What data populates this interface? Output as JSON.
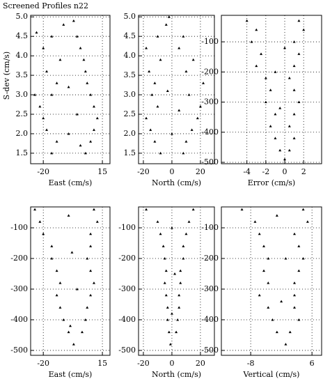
{
  "chart_data": [
    {
      "type": "scatter",
      "title": "Screened Profiles n22",
      "xlabel": "East (cm/s)",
      "ylabel": "S-dev (cm/s)",
      "color": "#000000",
      "grid": true,
      "xlim": [
        -27.5,
        19.5
      ],
      "ylim": [
        1.23,
        5.04
      ],
      "xticks": [
        -20,
        15
      ],
      "yticks": [
        1.5,
        {
          "value": 2,
          "label": "2.0"
        },
        2.5,
        {
          "value": 3,
          "label": "3.0"
        },
        3.5,
        {
          "value": 4,
          "label": "4.0"
        },
        4.5,
        {
          "value": 5,
          "label": "5.0"
        }
      ],
      "x": [
        -15,
        5,
        -12,
        8,
        -18,
        10,
        -20,
        12,
        -22,
        10,
        -15,
        8,
        -25,
        -12,
        6,
        -18,
        5,
        -10,
        4,
        -20,
        2,
        -15,
        0,
        -24,
        -8,
        -2,
        -5,
        0,
        -5,
        2
      ],
      "y": [
        1.5,
        1.5,
        1.8,
        1.8,
        2.1,
        2.1,
        2.4,
        2.4,
        2.7,
        2.7,
        3.0,
        3.0,
        3.0,
        3.3,
        3.3,
        3.6,
        3.6,
        3.9,
        3.9,
        4.2,
        4.2,
        4.5,
        4.5,
        4.6,
        4.8,
        4.9,
        2.0,
        2.5,
        3.2,
        1.7
      ]
    },
    {
      "type": "scatter",
      "xlabel": "North (cm/s)",
      "color": "#000000",
      "grid": true,
      "xlim": [
        -23.4,
        29.8
      ],
      "ylim": [
        1.23,
        5.04
      ],
      "xticks": [
        -20,
        0,
        20
      ],
      "yticks": [
        1.5,
        {
          "value": 2,
          "label": "2.0"
        },
        2.5,
        {
          "value": 3,
          "label": "3.0"
        },
        3.5,
        {
          "value": 4,
          "label": "4.0"
        },
        4.5,
        {
          "value": 5,
          "label": "5.0"
        }
      ],
      "x": [
        -8,
        8,
        -12,
        10,
        -15,
        14,
        -18,
        18,
        -10,
        20,
        -14,
        12,
        -12,
        22,
        -16,
        10,
        -8,
        15,
        -18,
        5,
        -10,
        8,
        -4,
        -2,
        0,
        5,
        -3
      ],
      "y": [
        1.5,
        1.5,
        1.8,
        1.8,
        2.1,
        2.1,
        2.4,
        2.4,
        2.7,
        2.7,
        3.0,
        3.0,
        3.3,
        3.3,
        3.6,
        3.6,
        3.9,
        3.9,
        4.2,
        4.2,
        4.5,
        4.5,
        4.8,
        5.0,
        2.0,
        2.6,
        3.1
      ]
    },
    {
      "type": "scatter",
      "xlabel": "Error (cm/s)",
      "color": "#000000",
      "grid": true,
      "xlim": [
        -6.7,
        3.9
      ],
      "ylim": [
        -504.6,
        -12
      ],
      "xticks": [
        -4,
        -2,
        0,
        2
      ],
      "yticks": [
        -100,
        -200,
        -300,
        -400,
        -500
      ],
      "x": [
        -4,
        1.5,
        -3,
        2,
        -3.5,
        1,
        -2.5,
        1.5,
        -3,
        1,
        -2,
        0.5,
        -1.5,
        1,
        -2,
        1.5,
        -1,
        1,
        -1.5,
        0.5,
        -1,
        1,
        -0.5,
        0.5,
        0,
        -1,
        0,
        -0.5
      ],
      "y": [
        -30,
        -30,
        -60,
        -60,
        -100,
        -100,
        -140,
        -140,
        -180,
        -180,
        -220,
        -220,
        -260,
        -260,
        -300,
        -300,
        -340,
        -340,
        -380,
        -380,
        -420,
        -420,
        -460,
        -460,
        -490,
        -200,
        -120,
        -320
      ]
    },
    {
      "type": "scatter",
      "xlabel": "East (cm/s)",
      "color": "#000000",
      "grid": true,
      "xlim": [
        -27.5,
        19.5
      ],
      "ylim": [
        -516,
        -31.8
      ],
      "xticks": [
        -20,
        15
      ],
      "yticks": [
        -100,
        -200,
        -300,
        -400,
        -500
      ],
      "x": [
        -25,
        10,
        -22,
        12,
        -20,
        8,
        -15,
        8,
        -15,
        6,
        -12,
        8,
        -10,
        10,
        -12,
        8,
        -10,
        6,
        -8,
        5,
        -5,
        3,
        -2,
        -5,
        -3,
        0,
        -4
      ],
      "y": [
        -40,
        -40,
        -80,
        -80,
        -120,
        -120,
        -160,
        -160,
        -200,
        -200,
        -240,
        -240,
        -280,
        -280,
        -320,
        -320,
        -360,
        -360,
        -400,
        -400,
        -440,
        -440,
        -480,
        -60,
        -180,
        -300,
        -420
      ]
    },
    {
      "type": "scatter",
      "xlabel": "North (cm/s)",
      "color": "#000000",
      "grid": true,
      "xlim": [
        -23.4,
        29.8
      ],
      "ylim": [
        -516,
        -31.8
      ],
      "xticks": [
        -20,
        0,
        20
      ],
      "yticks": [
        -100,
        -200,
        -300,
        -400,
        -500
      ],
      "x": [
        -18,
        15,
        -10,
        12,
        -8,
        10,
        -6,
        8,
        -5,
        8,
        -4,
        6,
        -5,
        6,
        -4,
        5,
        -3,
        5,
        -3,
        4,
        -2,
        3,
        -1,
        0,
        2,
        0
      ],
      "y": [
        -40,
        -40,
        -80,
        -80,
        -120,
        -120,
        -160,
        -160,
        -200,
        -200,
        -240,
        -240,
        -280,
        -280,
        -320,
        -320,
        -360,
        -360,
        -400,
        -400,
        -440,
        -440,
        -480,
        -100,
        -250,
        -380
      ]
    },
    {
      "type": "scatter",
      "xlabel": "Vertical (cm/s)",
      "color": "#000000",
      "grid": true,
      "xlim": [
        -14.7,
        8.2
      ],
      "ylim": [
        -516,
        -31.8
      ],
      "xticks": [
        -8,
        6
      ],
      "yticks": [
        -100,
        -200,
        -300,
        -400,
        -500
      ],
      "x": [
        -10,
        4,
        -7,
        5,
        -6,
        2,
        -5,
        3,
        -4,
        4,
        -5,
        3,
        -4,
        2,
        -6,
        2,
        -4,
        2,
        -3,
        3,
        -2,
        1,
        0,
        -2,
        0,
        -1
      ],
      "y": [
        -40,
        -40,
        -80,
        -80,
        -120,
        -120,
        -160,
        -160,
        -200,
        -200,
        -240,
        -240,
        -280,
        -280,
        -320,
        -320,
        -360,
        -360,
        -400,
        -400,
        -440,
        -440,
        -480,
        -60,
        -200,
        -340
      ]
    }
  ]
}
